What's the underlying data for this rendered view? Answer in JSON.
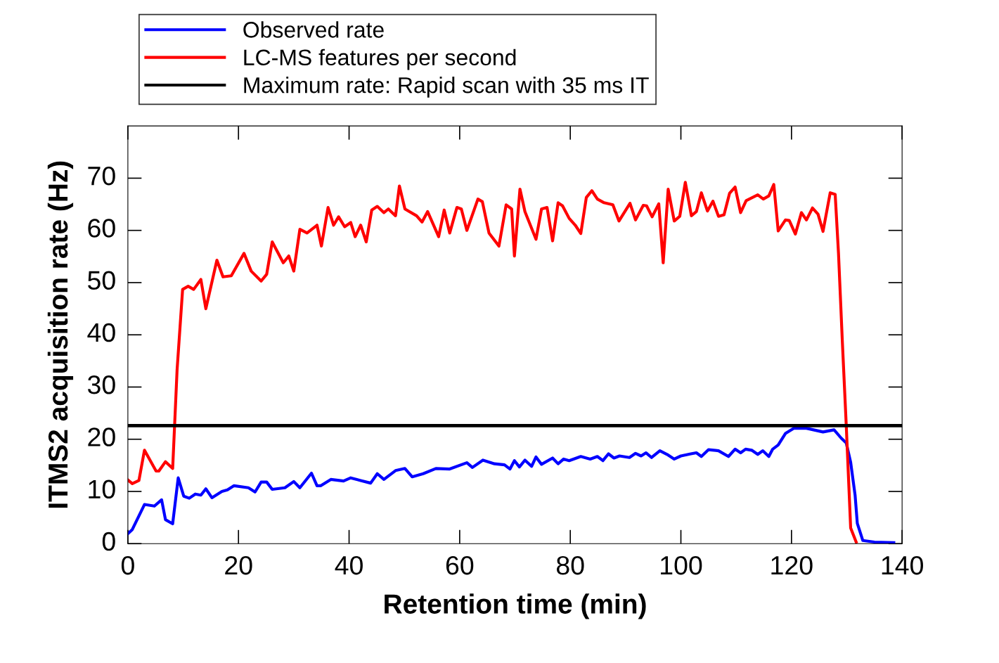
{
  "chart_data": {
    "type": "line",
    "xlabel": "Retention time (min)",
    "ylabel": "ITMS2 acquisition rate (Hz)",
    "xlim": [
      0,
      140
    ],
    "xticks": [
      0,
      20,
      40,
      60,
      80,
      100,
      120,
      140
    ],
    "ylim": [
      0,
      80
    ],
    "yticks": [
      0,
      10,
      20,
      30,
      40,
      50,
      60,
      70
    ],
    "legend": "top",
    "grid": false,
    "marker": "none",
    "line_style": "solid",
    "ref_lines": [
      {
        "axis": "y",
        "value": 22.6,
        "label": "Maximum rate: Rapid scan with 35 ms IT",
        "color": "#000000"
      }
    ],
    "series": [
      {
        "name": "Observed rate",
        "color": "#0000ff",
        "x": [
          0,
          0.8,
          3,
          4.8,
          6.1,
          6.8,
          8.1,
          9.1,
          10.1,
          11.1,
          12.2,
          13.2,
          14.1,
          15.2,
          17,
          18,
          19.2,
          21.8,
          23,
          24.1,
          25.1,
          26.1,
          28.4,
          30,
          31.1,
          33.2,
          34.2,
          34.9,
          36.7,
          39,
          40.3,
          42.1,
          43.9,
          45.1,
          46.3,
          48.4,
          50.1,
          51.4,
          53.4,
          55.7,
          58.2,
          61.3,
          62.3,
          64.2,
          66.3,
          68.1,
          69.1,
          69.9,
          70.8,
          71.8,
          73,
          73.8,
          74.8,
          76.8,
          77.8,
          78.8,
          79.8,
          81.9,
          83.6,
          84.9,
          85.9,
          86.9,
          87.9,
          88.9,
          90.7,
          91.8,
          92.8,
          93.7,
          94.7,
          96.2,
          97.5,
          98.8,
          100,
          101.8,
          102.8,
          103.7,
          105,
          106.8,
          108.6,
          109.8,
          110.8,
          111.7,
          112.8,
          113.9,
          114.8,
          115.9,
          116.6,
          117.6,
          118.9,
          120.4,
          122.7,
          125.7,
          127.7,
          129,
          129.9,
          130.7,
          131.5,
          131.9,
          132.9,
          135,
          138.5
        ],
        "values": [
          1.9,
          2.7,
          7.5,
          7.2,
          8.4,
          4.6,
          3.8,
          12.6,
          9.1,
          8.7,
          9.5,
          9.3,
          10.5,
          8.8,
          10,
          10.3,
          11.1,
          10.7,
          9.9,
          11.8,
          11.8,
          10.4,
          10.7,
          11.9,
          10.7,
          13.5,
          11.1,
          11.1,
          12.3,
          12,
          12.6,
          12.1,
          11.6,
          13.4,
          12.3,
          14,
          14.4,
          12.8,
          13.4,
          14.4,
          14.3,
          15.5,
          14.6,
          16,
          15.3,
          15.1,
          14.3,
          15.9,
          14.7,
          16,
          14.8,
          16.6,
          15.2,
          16.4,
          15.3,
          16.2,
          15.9,
          16.7,
          16.2,
          16.7,
          15.9,
          17.2,
          16.4,
          16.8,
          16.5,
          17.3,
          16.8,
          17.4,
          16.5,
          17.8,
          17.1,
          16.2,
          16.8,
          17.2,
          17.4,
          16.7,
          18,
          17.8,
          16.7,
          18.1,
          17.4,
          18.1,
          17.9,
          17.1,
          17.8,
          16.7,
          18.1,
          18.9,
          21.1,
          22.1,
          22.1,
          21.4,
          21.8,
          20.2,
          19.3,
          15.6,
          9.3,
          3.9,
          0.6,
          0.3,
          0.2
        ]
      },
      {
        "name": "LC-MS features per second",
        "color": "#ff0000",
        "x": [
          0,
          0.8,
          2,
          3,
          5.1,
          5.6,
          6.8,
          8.1,
          8.9,
          9.9,
          10.9,
          11.9,
          13.2,
          14.1,
          16.1,
          17.2,
          18.7,
          21,
          22.3,
          24.1,
          25.1,
          26.1,
          28.1,
          29.1,
          30,
          31.1,
          32.4,
          34.2,
          35,
          36.2,
          37.2,
          38.1,
          39.2,
          40.3,
          41.1,
          42.1,
          43.1,
          44.1,
          45.1,
          46.3,
          47.1,
          48.4,
          49.1,
          50.1,
          52.2,
          53.2,
          54.2,
          56.2,
          57.2,
          58.2,
          59.5,
          60.3,
          61.3,
          63.3,
          64.1,
          65.3,
          67.1,
          68.4,
          69.4,
          69.9,
          70.9,
          71.8,
          73.8,
          74.8,
          75.8,
          76.8,
          77.8,
          78.6,
          79.8,
          80.9,
          81.9,
          82.9,
          83.9,
          84.9,
          86.1,
          87.7,
          88.8,
          90.8,
          91.8,
          93.2,
          93.8,
          94.8,
          96,
          96.8,
          97.7,
          98.8,
          99.8,
          100.8,
          101.9,
          102.8,
          103.7,
          104.8,
          105.8,
          106.8,
          107.8,
          108.8,
          109.8,
          110.8,
          111.8,
          113.9,
          114.9,
          115.9,
          116.8,
          117.6,
          118.9,
          119.6,
          120.7,
          121.8,
          122.7,
          123.8,
          124.8,
          125.7,
          127,
          127.9,
          128.5,
          129.2,
          129.9,
          130.7,
          131.7
        ],
        "values": [
          12.2,
          11.5,
          12.1,
          17.9,
          13.9,
          13.9,
          15.7,
          14.4,
          33.3,
          48.7,
          49.3,
          48.7,
          50.6,
          45,
          54.3,
          51.1,
          51.3,
          55.6,
          52.2,
          50.3,
          51.6,
          57.8,
          53.8,
          55.1,
          52.2,
          60.2,
          59.5,
          61,
          57,
          64.4,
          61,
          62.6,
          60.7,
          61.5,
          58.8,
          61,
          57.8,
          63.9,
          64.6,
          63.4,
          64.1,
          62.8,
          68.5,
          64.1,
          62.8,
          61.6,
          63.6,
          58.8,
          63.9,
          59.5,
          64.4,
          64.1,
          60,
          66,
          65.5,
          59.5,
          57,
          64.9,
          64.1,
          55.1,
          67.9,
          63.6,
          58.3,
          64.1,
          64.4,
          58,
          65.3,
          64.7,
          62.3,
          61,
          59.4,
          66.3,
          67.6,
          66,
          65.3,
          64.9,
          61.8,
          65.2,
          62,
          64.8,
          64.7,
          62.6,
          65.1,
          53.8,
          67.9,
          61.8,
          62.7,
          69.2,
          62.8,
          63.6,
          67.2,
          63.7,
          65.6,
          62.7,
          63,
          67.1,
          68.3,
          63.4,
          65.7,
          66.8,
          66,
          66.6,
          68.8,
          59.9,
          62,
          61.9,
          59.3,
          63.4,
          62,
          64.3,
          63.1,
          59.8,
          67.2,
          66.9,
          55.6,
          38.6,
          22.7,
          3,
          0.3
        ]
      }
    ]
  }
}
